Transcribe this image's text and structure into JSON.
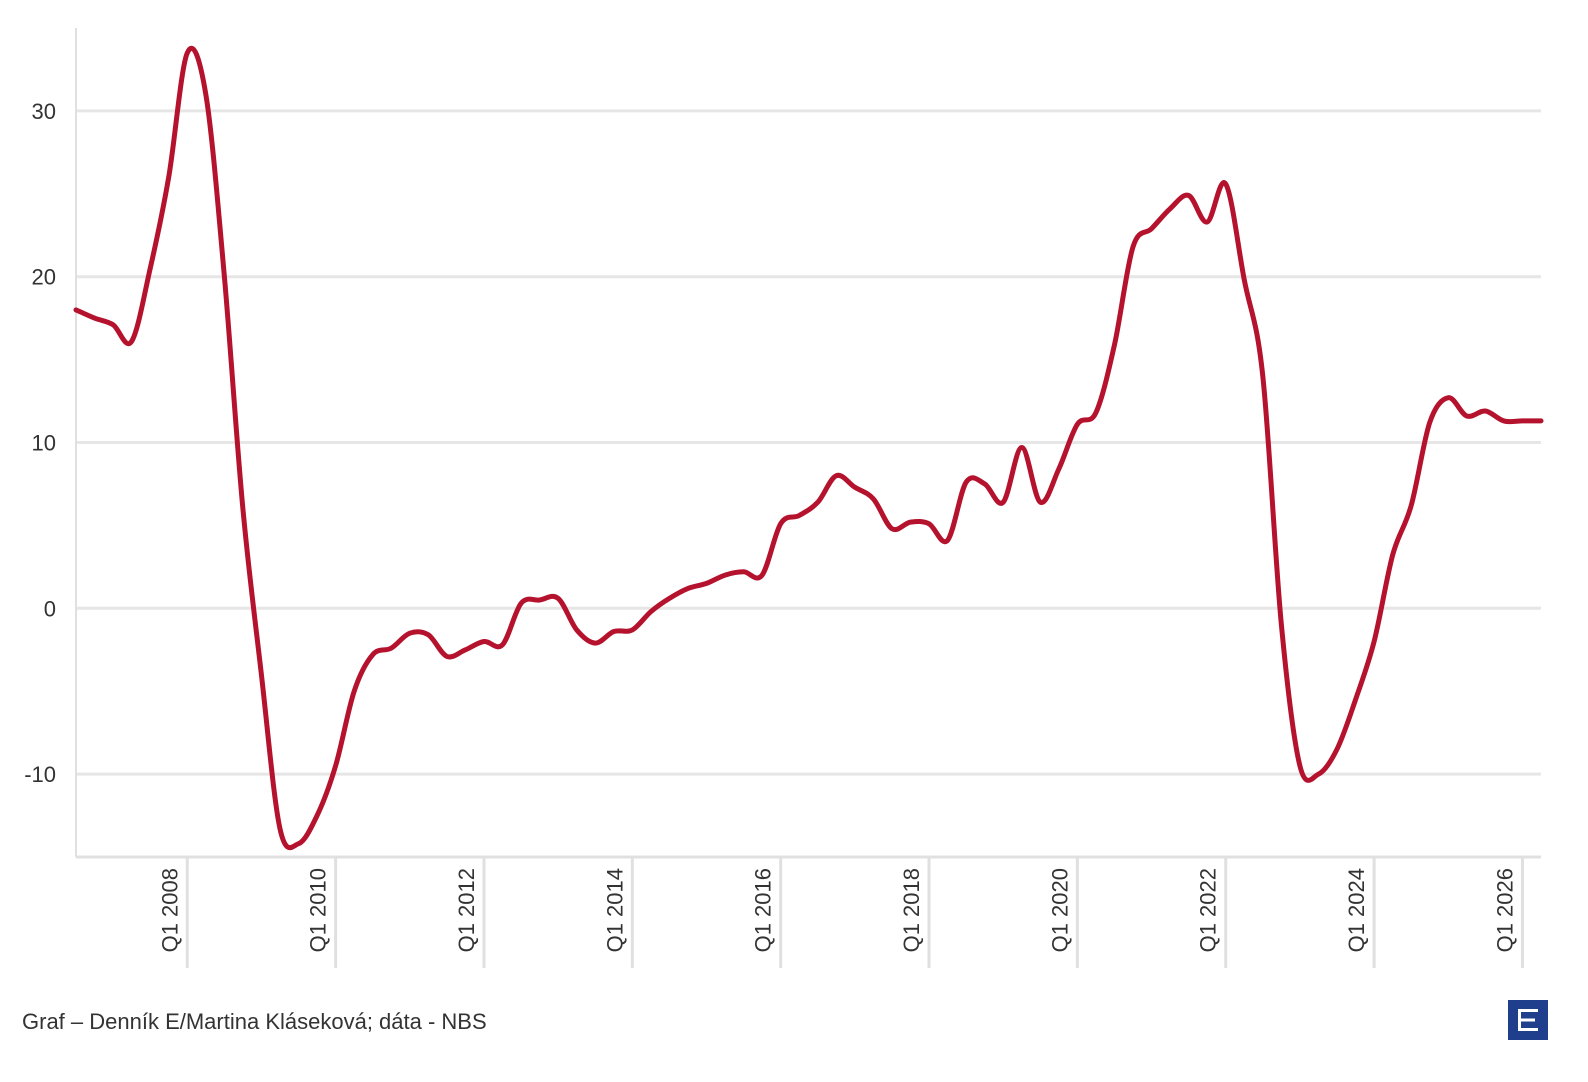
{
  "chart_data": {
    "type": "line",
    "title": "",
    "xlabel": "",
    "ylabel": "",
    "x_unit": "quarter",
    "xlim": [
      "2006-07",
      "2026-04"
    ],
    "ylim": [
      -15,
      35
    ],
    "y_ticks": [
      -10,
      0,
      10,
      20,
      30
    ],
    "y_tick_labels": [
      "-10",
      "0",
      "10",
      "20",
      "30"
    ],
    "x_ticks": [
      "2008-01",
      "2010-01",
      "2012-01",
      "2014-01",
      "2016-01",
      "2018-01",
      "2020-01",
      "2022-01",
      "2024-01",
      "2026-01"
    ],
    "x_tick_labels": [
      "Q1 2008",
      "Q1 2010",
      "Q1 2012",
      "Q1 2014",
      "Q1 2016",
      "Q1 2018",
      "Q1 2020",
      "Q1 2022",
      "Q1 2024",
      "Q1 2026"
    ],
    "grid": "horizontal",
    "legend": "none",
    "colors": {
      "series": "#b5122e",
      "grid": "#e6e6e6",
      "axis": "#e0e0e0"
    },
    "series": [
      {
        "x": [
          "2006-07",
          "2006-10",
          "2007-01",
          "2007-04",
          "2007-07",
          "2007-10",
          "2008-01",
          "2008-04",
          "2008-07",
          "2008-10",
          "2009-01",
          "2009-04",
          "2009-07",
          "2009-10",
          "2010-01",
          "2010-04",
          "2010-07",
          "2010-10",
          "2011-01",
          "2011-04",
          "2011-07",
          "2011-10",
          "2012-01",
          "2012-04",
          "2012-07",
          "2012-10",
          "2013-01",
          "2013-04",
          "2013-07",
          "2013-10",
          "2014-01",
          "2014-04",
          "2014-07",
          "2014-10",
          "2015-01",
          "2015-04",
          "2015-07",
          "2015-10",
          "2016-01",
          "2016-04",
          "2016-07",
          "2016-10",
          "2017-01",
          "2017-04",
          "2017-07",
          "2017-10",
          "2018-01",
          "2018-04",
          "2018-07",
          "2018-10",
          "2019-01",
          "2019-04",
          "2019-07",
          "2019-10",
          "2020-01",
          "2020-04",
          "2020-07",
          "2020-10",
          "2021-01",
          "2021-04",
          "2021-07",
          "2021-10",
          "2022-01",
          "2022-04",
          "2022-07",
          "2022-10",
          "2023-01",
          "2023-04",
          "2023-07",
          "2023-10",
          "2024-01",
          "2024-04",
          "2024-07",
          "2024-10",
          "2025-01",
          "2025-04",
          "2025-07",
          "2025-10",
          "2026-01",
          "2026-04"
        ],
        "values": [
          18,
          17.5,
          17.1,
          16.1,
          20.5,
          26,
          33.5,
          31,
          20,
          6,
          -4,
          -13.3,
          -14.2,
          -12.5,
          -9.5,
          -5,
          -2.8,
          -2.4,
          -1.5,
          -1.6,
          -2.9,
          -2.5,
          -2.0,
          -2.2,
          0.3,
          0.5,
          0.6,
          -1.3,
          -2.1,
          -1.4,
          -1.3,
          -0.2,
          0.6,
          1.2,
          1.5,
          2.0,
          2.2,
          2.0,
          5.1,
          5.6,
          6.4,
          8.0,
          7.3,
          6.6,
          4.8,
          5.2,
          5.1,
          4.1,
          7.6,
          7.5,
          6.4,
          9.7,
          6.4,
          8.4,
          11.1,
          11.8,
          15.9,
          21.8,
          22.9,
          24.1,
          24.9,
          23.3,
          25.6,
          19.8,
          14,
          -1,
          -9.5,
          -10,
          -8.5,
          -5.5,
          -2,
          3.2,
          6.2,
          11.2,
          12.7,
          11.6,
          11.9,
          11.3,
          11.3,
          11.3
        ]
      }
    ]
  },
  "footer": {
    "credit": "Graf – Denník E/Martina Kláseková; dáta - NBS"
  },
  "logo": {
    "name": "denník-e-logo"
  }
}
